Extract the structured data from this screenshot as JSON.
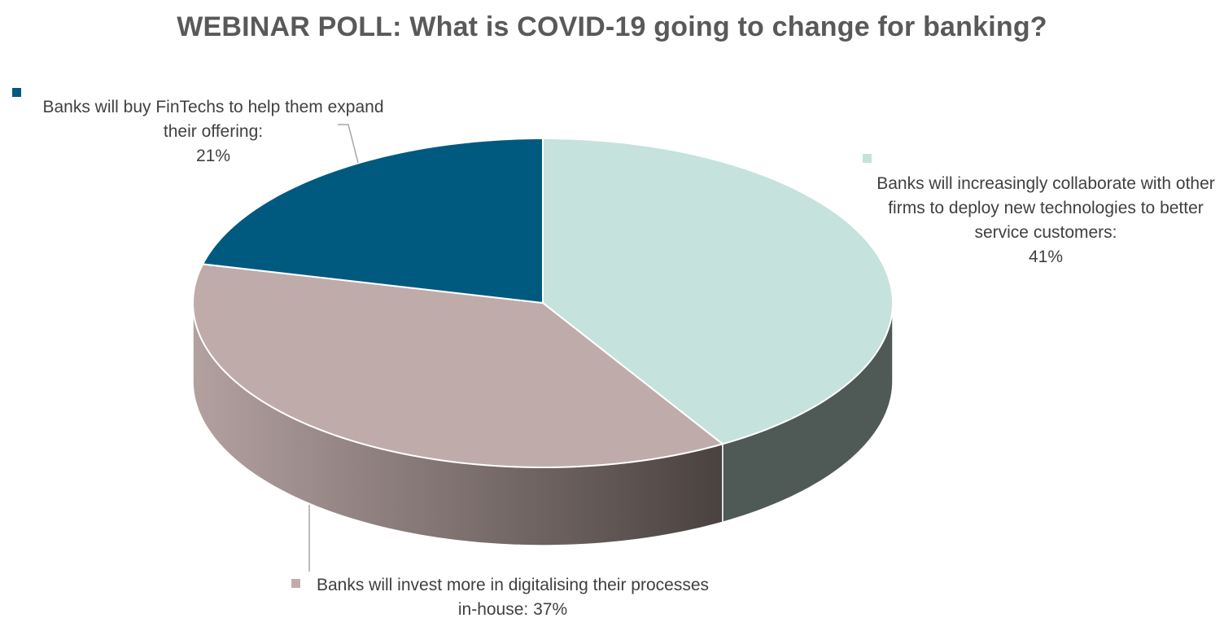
{
  "title": "WEBINAR POLL: What is COVID-19 going to change for banking?",
  "chart_data": {
    "type": "pie",
    "style": "3d",
    "slices": [
      {
        "key": "fintech",
        "label": "Banks will buy FinTechs to help them expand their offering:",
        "value": 21,
        "value_text": "21%",
        "color": "#005a80"
      },
      {
        "key": "collab",
        "label": "Banks will increasingly collaborate with other firms to deploy new technologies to better service customers:",
        "value": 41,
        "value_text": "41%",
        "color": "#c5e2dd"
      },
      {
        "key": "digital",
        "label": "Banks will invest more in digitalising their processes in-house:",
        "value": 37,
        "value_text": "37%",
        "color": "#bfacaa"
      }
    ],
    "side_colors": {
      "collab": "#4f5a57",
      "digital_light": "#b3a1a0",
      "digital_dark": "#4a4240"
    },
    "legend": "data-labels"
  }
}
